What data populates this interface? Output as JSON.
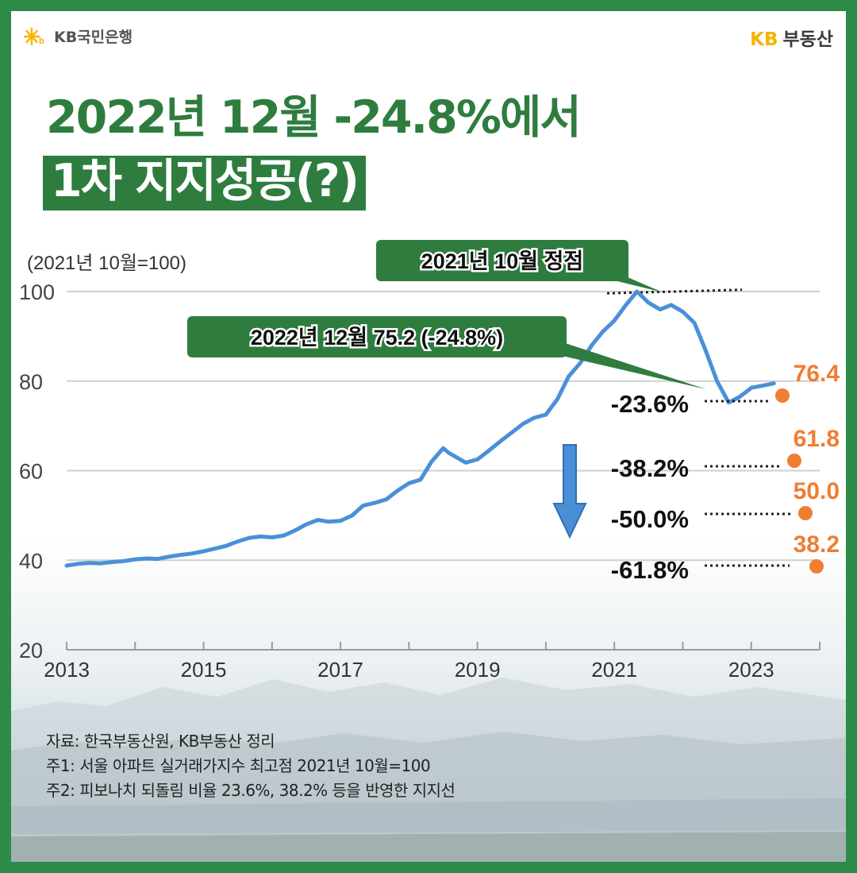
{
  "brand": {
    "bank_name": "KB국민은행",
    "realestate_kb": "KB",
    "realestate_name": "부동산"
  },
  "title": {
    "line1": "2022년 12월 -24.8%에서",
    "line2": "1차 지지성공(?)"
  },
  "colors": {
    "frame": "#2e8b47",
    "title_green": "#2e7d3f",
    "line": "#4a90d9",
    "target": "#ef7d32",
    "arrow": "#4a8fd6"
  },
  "chart_data": {
    "type": "line",
    "subtitle": "(2021년 10월=100)",
    "yticks": [
      20,
      40,
      60,
      80,
      100
    ],
    "xticks": [
      "2013",
      "2015",
      "2017",
      "2019",
      "2021",
      "2023"
    ],
    "ylim": [
      20,
      100
    ],
    "xlim": [
      2013,
      2024
    ],
    "grid": true,
    "series": [
      {
        "x": [
          2013.0,
          2013.17,
          2013.33,
          2013.5,
          2013.67,
          2013.83,
          2014.0,
          2014.17,
          2014.33,
          2014.5,
          2014.67,
          2014.83,
          2015.0,
          2015.17,
          2015.33,
          2015.5,
          2015.67,
          2015.83,
          2016.0,
          2016.17,
          2016.33,
          2016.5,
          2016.67,
          2016.83,
          2017.0,
          2017.17,
          2017.33,
          2017.5,
          2017.67,
          2017.83,
          2018.0,
          2018.17,
          2018.33,
          2018.5,
          2018.58,
          2018.67,
          2018.75,
          2018.83,
          2019.0,
          2019.17,
          2019.33,
          2019.5,
          2019.67,
          2019.83,
          2020.0,
          2020.17,
          2020.33,
          2020.5,
          2020.67,
          2020.83,
          2021.0,
          2021.17,
          2021.33,
          2021.5,
          2021.67,
          2021.83,
          2022.0,
          2022.17,
          2022.33,
          2022.5,
          2022.67,
          2022.83,
          2022.92,
          2023.0,
          2023.17,
          2023.33
        ],
        "values": [
          38.8,
          39.2,
          39.4,
          39.3,
          39.6,
          39.8,
          40.2,
          40.4,
          40.3,
          40.8,
          41.2,
          41.5,
          42.0,
          42.6,
          43.2,
          44.2,
          45.0,
          45.3,
          45.1,
          45.5,
          46.6,
          48.0,
          49.0,
          48.6,
          48.8,
          50.0,
          52.2,
          52.8,
          53.6,
          55.5,
          57.2,
          58.0,
          62.0,
          65.0,
          64.0,
          63.2,
          62.5,
          61.8,
          62.5,
          64.5,
          66.5,
          68.5,
          70.5,
          71.8,
          72.5,
          76.0,
          81.0,
          84.0,
          88.0,
          91.0,
          93.5,
          97.0,
          100.0,
          97.5,
          96.0,
          97.0,
          95.5,
          93.0,
          87.0,
          80.0,
          75.2,
          76.5,
          77.5,
          78.5,
          79.0,
          79.5
        ]
      }
    ],
    "annotations": {
      "peak": "2021년 10월 정점",
      "trough": "2022년 12월 75.2 (-24.8%)"
    },
    "fib_levels": [
      {
        "label": "-23.6%",
        "value": 76.4,
        "value_label": "76.4"
      },
      {
        "label": "-38.2%",
        "value": 61.8,
        "value_label": "61.8"
      },
      {
        "label": "-50.0%",
        "value": 50.0,
        "value_label": "50.0"
      },
      {
        "label": "-61.8%",
        "value": 38.2,
        "value_label": "38.2"
      }
    ]
  },
  "notes": {
    "source": "자료: 한국부동산원, KB부동산 정리",
    "note1": "주1: 서울 아파트 실거래가지수 최고점 2021년 10월=100",
    "note2": "주2: 피보나치 되돌림 비율 23.6%, 38.2% 등을 반영한 지지선"
  }
}
